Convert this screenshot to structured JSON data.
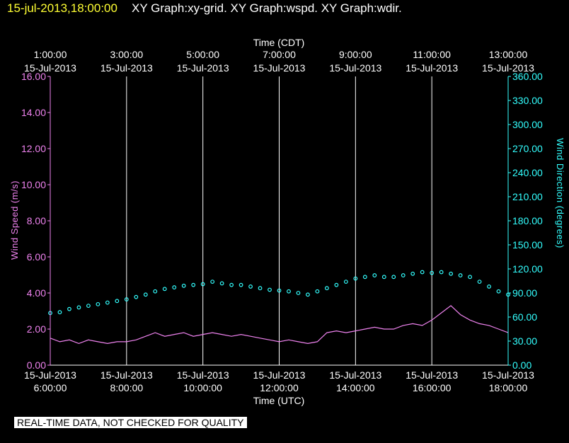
{
  "header": {
    "timestamp": "15-jul-2013,18:00:00",
    "graphs": "XY Graph:xy-grid.  XY Graph:wspd.  XY Graph:wdir."
  },
  "footer": {
    "quality_note": "REAL-TIME DATA, NOT CHECKED FOR QUALITY"
  },
  "chart_data": {
    "type": "line",
    "x_top": {
      "label": "Time (CDT)",
      "ticks": [
        {
          "time": "1:00:00",
          "date": "15-Jul-2013"
        },
        {
          "time": "3:00:00",
          "date": "15-Jul-2013"
        },
        {
          "time": "5:00:00",
          "date": "15-Jul-2013"
        },
        {
          "time": "7:00:00",
          "date": "15-Jul-2013"
        },
        {
          "time": "9:00:00",
          "date": "15-Jul-2013"
        },
        {
          "time": "11:00:00",
          "date": "15-Jul-2013"
        },
        {
          "time": "13:00:00",
          "date": "15-Jul-2013"
        }
      ]
    },
    "x_bottom": {
      "label": "Time (UTC)",
      "ticks": [
        {
          "date": "15-Jul-2013",
          "time": "6:00:00"
        },
        {
          "date": "15-Jul-2013",
          "time": "8:00:00"
        },
        {
          "date": "15-Jul-2013",
          "time": "10:00:00"
        },
        {
          "date": "15-Jul-2013",
          "time": "12:00:00"
        },
        {
          "date": "15-Jul-2013",
          "time": "14:00:00"
        },
        {
          "date": "15-Jul-2013",
          "time": "16:00:00"
        },
        {
          "date": "15-Jul-2013",
          "time": "18:00:00"
        }
      ]
    },
    "xlim_utc_hours": [
      6.0,
      18.0
    ],
    "grid": "vertical lines at major x ticks",
    "y_left": {
      "label": "Wind Speed (m/s)",
      "ylim": [
        0,
        16
      ],
      "ticks": [
        "0.00",
        "2.00",
        "4.00",
        "6.00",
        "8.00",
        "10.00",
        "12.00",
        "14.00",
        "16.00"
      ],
      "color": "#ee82ee"
    },
    "y_right": {
      "label": "Wind Direction (degrees)",
      "ylim": [
        0,
        360
      ],
      "ticks": [
        "0.00",
        "30.00",
        "60.00",
        "90.00",
        "120.00",
        "150.00",
        "180.00",
        "210.00",
        "240.00",
        "270.00",
        "300.00",
        "330.00",
        "360.00"
      ],
      "color": "#33ffff"
    },
    "series": [
      {
        "name": "wspd",
        "kind": "line",
        "axis": "left",
        "color": "#ee82ee",
        "x_utc_hours": [
          6.0,
          6.25,
          6.5,
          6.75,
          7.0,
          7.25,
          7.5,
          7.75,
          8.0,
          8.25,
          8.5,
          8.75,
          9.0,
          9.25,
          9.5,
          9.75,
          10.0,
          10.25,
          10.5,
          10.75,
          11.0,
          11.25,
          11.5,
          11.75,
          12.0,
          12.25,
          12.5,
          12.75,
          13.0,
          13.25,
          13.5,
          13.75,
          14.0,
          14.25,
          14.5,
          14.75,
          15.0,
          15.25,
          15.5,
          15.75,
          16.0,
          16.25,
          16.5,
          16.75,
          17.0,
          17.25,
          17.5,
          17.75,
          18.0
        ],
        "values": [
          1.5,
          1.3,
          1.4,
          1.2,
          1.4,
          1.3,
          1.2,
          1.3,
          1.3,
          1.4,
          1.6,
          1.8,
          1.6,
          1.7,
          1.8,
          1.6,
          1.7,
          1.8,
          1.7,
          1.6,
          1.7,
          1.6,
          1.5,
          1.4,
          1.3,
          1.4,
          1.3,
          1.2,
          1.3,
          1.8,
          1.9,
          1.8,
          1.9,
          2.0,
          2.1,
          2.0,
          2.0,
          2.2,
          2.3,
          2.2,
          2.5,
          2.9,
          3.3,
          2.8,
          2.5,
          2.3,
          2.2,
          2.0,
          1.8
        ]
      },
      {
        "name": "wdir",
        "kind": "scatter",
        "axis": "right",
        "color": "#33ffff",
        "x_utc_hours": [
          6.0,
          6.25,
          6.5,
          6.75,
          7.0,
          7.25,
          7.5,
          7.75,
          8.0,
          8.25,
          8.5,
          8.75,
          9.0,
          9.25,
          9.5,
          9.75,
          10.0,
          10.25,
          10.5,
          10.75,
          11.0,
          11.25,
          11.5,
          11.75,
          12.0,
          12.25,
          12.5,
          12.75,
          13.0,
          13.25,
          13.5,
          13.75,
          14.0,
          14.25,
          14.5,
          14.75,
          15.0,
          15.25,
          15.5,
          15.75,
          16.0,
          16.25,
          16.5,
          16.75,
          17.0,
          17.25,
          17.5,
          17.75,
          18.0
        ],
        "values": [
          65,
          66,
          70,
          72,
          74,
          76,
          78,
          80,
          82,
          85,
          88,
          92,
          95,
          97,
          99,
          100,
          101,
          104,
          102,
          100,
          100,
          98,
          96,
          94,
          93,
          92,
          90,
          88,
          92,
          96,
          100,
          104,
          108,
          110,
          112,
          110,
          110,
          112,
          114,
          116,
          115,
          116,
          114,
          112,
          110,
          104,
          98,
          92,
          88
        ]
      }
    ]
  }
}
